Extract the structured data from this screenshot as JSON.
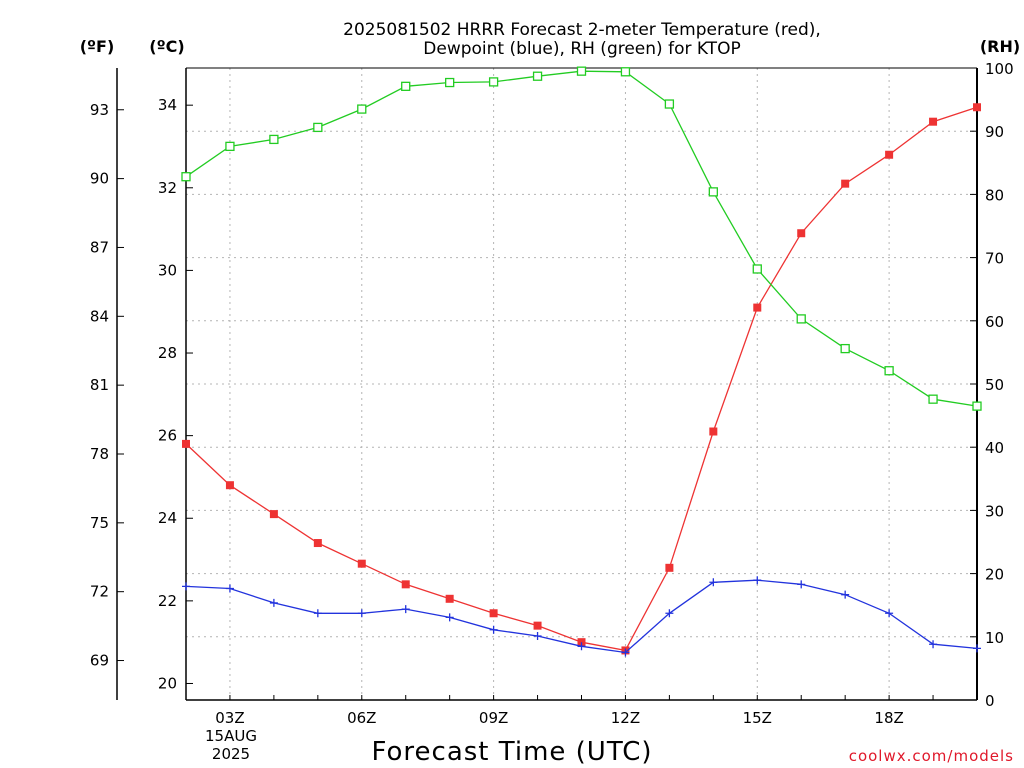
{
  "chart_data": {
    "type": "line",
    "title_line1": "2025081502 HRRR Forecast 2-meter Temperature (red),",
    "title_line2": "Dewpoint (blue), RH (green) for KTOP",
    "xlabel": "Forecast Time (UTC)",
    "credit": "coolwx.com/models",
    "x_hours": [
      2,
      3,
      4,
      5,
      6,
      7,
      8,
      9,
      10,
      11,
      12,
      13,
      14,
      15,
      16,
      17,
      18,
      19,
      20
    ],
    "x_range": [
      2,
      20
    ],
    "x_ticks": [
      {
        "hour": 3,
        "label": "03Z"
      },
      {
        "hour": 6,
        "label": "06Z"
      },
      {
        "hour": 9,
        "label": "09Z"
      },
      {
        "hour": 12,
        "label": "12Z"
      },
      {
        "hour": 15,
        "label": "15Z"
      },
      {
        "hour": 18,
        "label": "18Z"
      }
    ],
    "date_line1": "15AUG",
    "date_line2": "2025",
    "left_c_axis": {
      "unit_label": "(ºC)",
      "range": [
        19.6,
        34.9
      ],
      "ticks": [
        20,
        22,
        24,
        26,
        28,
        30,
        32,
        34
      ]
    },
    "left_f_axis": {
      "unit_label": "(ºF)",
      "ticks": [
        69,
        72,
        75,
        78,
        81,
        84,
        87,
        90,
        93
      ]
    },
    "right_rh_axis": {
      "unit_label": "(RH)",
      "range": [
        0,
        100
      ],
      "ticks": [
        0,
        10,
        20,
        30,
        40,
        50,
        60,
        70,
        80,
        90,
        100
      ]
    },
    "grid": true,
    "series": [
      {
        "key": "temperature",
        "color": "#ee3333",
        "marker": "filled-square",
        "axis": "celsius",
        "values": [
          25.8,
          24.8,
          24.1,
          23.4,
          22.9,
          22.4,
          22.05,
          21.7,
          21.4,
          21.0,
          20.8,
          22.8,
          26.1,
          29.1,
          30.9,
          32.1,
          32.8,
          33.6,
          33.95
        ]
      },
      {
        "key": "dewpoint",
        "color": "#2233dd",
        "marker": "plus",
        "axis": "celsius",
        "values": [
          22.35,
          22.3,
          21.95,
          21.7,
          21.7,
          21.8,
          21.6,
          21.3,
          21.15,
          20.9,
          20.75,
          21.7,
          22.45,
          22.5,
          22.4,
          22.15,
          21.7,
          20.95,
          20.85
        ]
      },
      {
        "key": "rh",
        "color": "#22cc22",
        "marker": "open-square",
        "axis": "rh",
        "values": [
          82.8,
          87.6,
          88.7,
          90.6,
          93.5,
          97.1,
          97.7,
          97.8,
          98.7,
          99.5,
          99.4,
          94.3,
          80.4,
          68.2,
          60.3,
          55.6,
          52.1,
          47.6,
          46.5
        ]
      }
    ]
  }
}
